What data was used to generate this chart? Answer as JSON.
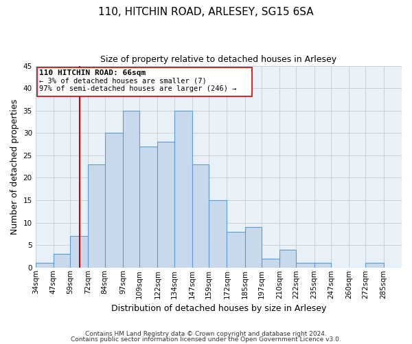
{
  "title": "110, HITCHIN ROAD, ARLESEY, SG15 6SA",
  "subtitle": "Size of property relative to detached houses in Arlesey",
  "xlabel": "Distribution of detached houses by size in Arlesey",
  "ylabel": "Number of detached properties",
  "bar_color": "#c8d9eb",
  "bar_edge_color": "#5b9bd5",
  "background_color": "#ffffff",
  "plot_bg_color": "#e8f0f8",
  "grid_color": "#c8d0d8",
  "annotation_line_color": "#cc0000",
  "annotation_box_line_color": "#cc0000",
  "annotation_text_line1": "110 HITCHIN ROAD: 66sqm",
  "annotation_text_line2": "← 3% of detached houses are smaller (7)",
  "annotation_text_line3": "97% of semi-detached houses are larger (246) →",
  "property_x": 66,
  "xlim_left": 34,
  "xlim_right": 298,
  "ylim": [
    0,
    45
  ],
  "yticks": [
    0,
    5,
    10,
    15,
    20,
    25,
    30,
    35,
    40,
    45
  ],
  "footer_line1": "Contains HM Land Registry data © Crown copyright and database right 2024.",
  "footer_line2": "Contains public sector information licensed under the Open Government Licence v3.0.",
  "bins": [
    34,
    47,
    59,
    72,
    84,
    97,
    109,
    122,
    134,
    147,
    159,
    172,
    185,
    197,
    210,
    222,
    235,
    247,
    260,
    272,
    285,
    298
  ],
  "counts": [
    1,
    3,
    7,
    23,
    30,
    35,
    27,
    28,
    35,
    23,
    15,
    8,
    9,
    2,
    4,
    1,
    1,
    0,
    0,
    1,
    0
  ],
  "title_fontsize": 11,
  "subtitle_fontsize": 9,
  "axis_label_fontsize": 9,
  "tick_fontsize": 7.5,
  "annotation_fontsize_bold": 8,
  "annotation_fontsize": 7.5,
  "footer_fontsize": 6.5
}
